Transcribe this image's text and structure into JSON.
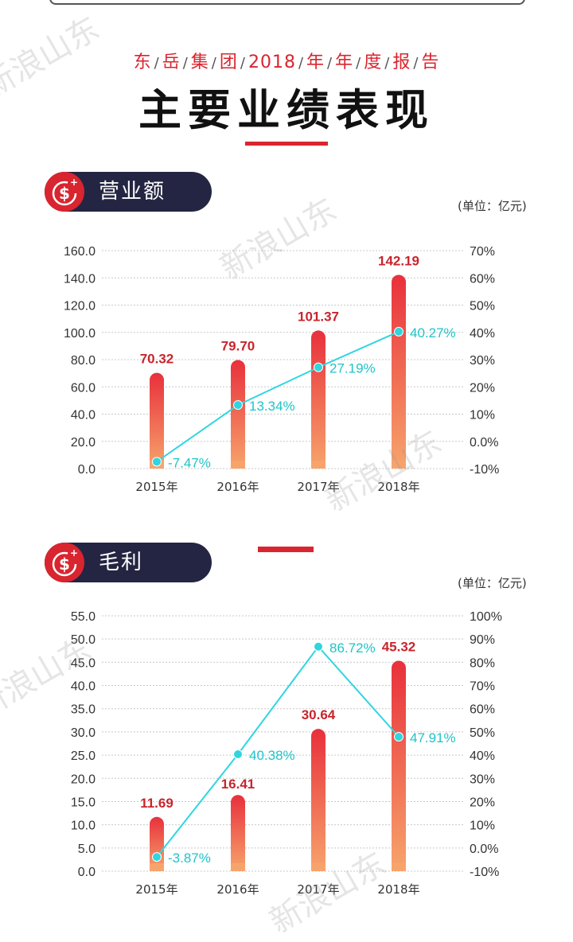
{
  "header": {
    "subtitle_parts": [
      "东",
      "岳",
      "集",
      "团",
      "2018",
      "年",
      "年",
      "度",
      "报",
      "告"
    ],
    "title": "主要业绩表现"
  },
  "sections": [
    {
      "label": "营业额",
      "unit": "(单位：亿元)"
    },
    {
      "label": "毛利",
      "unit": "(单位：亿元)"
    }
  ],
  "watermark": "新浪山东",
  "colors": {
    "accent": "#d9252f",
    "bar_top": "#e8303c",
    "bar_bottom": "#f7a46c",
    "line": "#2fd6e0",
    "pill": "#242542",
    "value_label": "#c8252d",
    "pct_label": "#1fc4c8"
  },
  "chart_data": [
    {
      "type": "bar",
      "categories": [
        "2015年",
        "2016年",
        "2017年",
        "2018年"
      ],
      "series": [
        {
          "values": [
            70.32,
            79.7,
            101.37,
            142.19
          ],
          "labels": [
            "70.32",
            "79.70",
            "101.37",
            "142.19"
          ]
        },
        {
          "type": "line",
          "axis": "right",
          "values": [
            -7.47,
            13.34,
            27.19,
            40.27
          ],
          "labels": [
            "-7.47%",
            "13.34%",
            "27.19%",
            "40.27%"
          ]
        }
      ],
      "left_ticks": [
        "0.0",
        "20.0",
        "40.0",
        "60.0",
        "80.0",
        "100.0",
        "120.0",
        "140.0",
        "160.0"
      ],
      "right_ticks": [
        "-10%",
        "0.0%",
        "10%",
        "20%",
        "30%",
        "40%",
        "50%",
        "60%",
        "70%"
      ],
      "ylim": [
        0,
        160
      ],
      "y2lim": [
        -10,
        70
      ],
      "grid": true
    },
    {
      "type": "bar",
      "categories": [
        "2015年",
        "2016年",
        "2017年",
        "2018年"
      ],
      "series": [
        {
          "values": [
            11.69,
            16.41,
            30.64,
            45.32
          ],
          "labels": [
            "11.69",
            "16.41",
            "30.64",
            "45.32"
          ]
        },
        {
          "type": "line",
          "axis": "right",
          "values": [
            -3.87,
            40.38,
            86.72,
            47.91
          ],
          "labels": [
            "-3.87%",
            "40.38%",
            "86.72%",
            "47.91%"
          ]
        }
      ],
      "left_ticks": [
        "0.0",
        "5.0",
        "10.0",
        "15.0",
        "20.0",
        "25.0",
        "30.0",
        "35.0",
        "40.0",
        "45.0",
        "50.0",
        "55.0"
      ],
      "right_ticks": [
        "-10%",
        "0.0%",
        "10%",
        "20%",
        "30%",
        "40%",
        "50%",
        "60%",
        "70%",
        "80%",
        "90%",
        "100%"
      ],
      "ylim": [
        0,
        55
      ],
      "y2lim": [
        -10,
        100
      ],
      "grid": true
    }
  ]
}
